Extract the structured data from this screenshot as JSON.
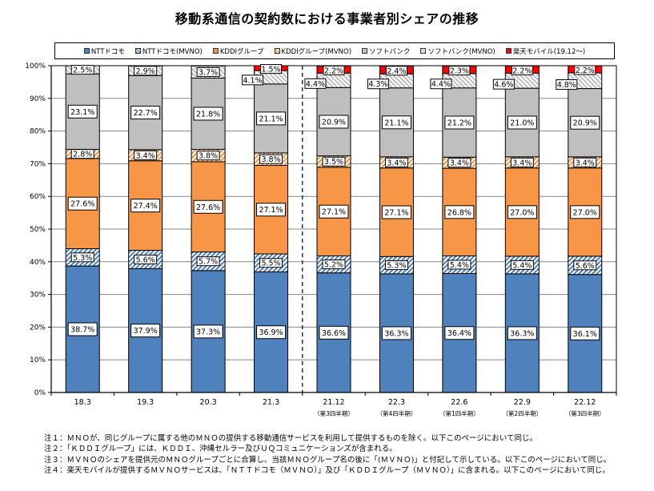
{
  "chart_data": {
    "type": "bar",
    "stacked": true,
    "title": "移動系通信の契約数における事業者別シェアの推移",
    "xlabel": "",
    "ylabel": "",
    "ylim": [
      0,
      100
    ],
    "yticks": [
      "0%",
      "10%",
      "20%",
      "30%",
      "40%",
      "50%",
      "60%",
      "70%",
      "80%",
      "90%",
      "100%"
    ],
    "grid": true,
    "legend_position": "top",
    "categories": [
      "18.3",
      "19.3",
      "20.3",
      "21.3",
      "21.12",
      "22.3",
      "22.6",
      "22.9",
      "22.12"
    ],
    "category_sublabels": [
      "",
      "",
      "",
      "",
      "（第3四半期）",
      "（第4四半期）",
      "（第1四半期）",
      "（第2四半期）",
      "（第3四半期）"
    ],
    "separator_after_index": 3,
    "series": [
      {
        "name": "NTTドコモ",
        "color": "#4f81bd",
        "pattern": "solid",
        "values": [
          38.7,
          37.9,
          37.3,
          36.9,
          36.6,
          36.3,
          36.4,
          36.3,
          36.1
        ]
      },
      {
        "name": "NTTドコモ(MVNO)",
        "color": "#4f81bd",
        "pattern": "hatch",
        "values": [
          5.3,
          5.6,
          5.7,
          5.5,
          5.2,
          5.3,
          5.4,
          5.4,
          5.6
        ]
      },
      {
        "name": "KDDIグループ",
        "color": "#f79646",
        "pattern": "solid",
        "values": [
          27.6,
          27.4,
          27.6,
          27.1,
          27.1,
          27.1,
          26.8,
          27.0,
          27.0
        ]
      },
      {
        "name": "KDDIグループ(MVNO)",
        "color": "#f79646",
        "pattern": "hatch",
        "values": [
          2.8,
          3.4,
          3.8,
          3.8,
          3.5,
          3.4,
          3.4,
          3.4,
          3.4
        ]
      },
      {
        "name": "ソフトバンク",
        "color": "#bfbfbf",
        "pattern": "solid",
        "values": [
          23.1,
          22.7,
          21.8,
          21.1,
          20.9,
          21.1,
          21.2,
          21.0,
          20.9
        ]
      },
      {
        "name": "ソフトバンク(MVNO)",
        "color": "#bfbfbf",
        "pattern": "hatch",
        "values": [
          2.5,
          2.9,
          3.7,
          4.1,
          4.4,
          4.3,
          4.4,
          4.6,
          4.8
        ]
      },
      {
        "name": "楽天モバイル(19.12～)",
        "color": "#ff0000",
        "pattern": "solid",
        "values": [
          null,
          null,
          null,
          1.5,
          2.2,
          2.4,
          2.3,
          2.2,
          2.2
        ]
      }
    ]
  },
  "notes": [
    "注１：ＭＮＯが、同じグループに属する他のＭＮＯの提供する移動通信サービスを利用して提供するものを除く。以下このページにおいて同じ。",
    "注２：「ＫＤＤＩグループ」には、ＫＤＤＩ、沖縄セルラー及びＵＱコミュニケーションズが含まれる。",
    "注３：ＭＶＮＯのシェアを提供元のＭＮＯグループごとに合算し、当該ＭＮＯグループ名の後に「(ＭＶＮＯ)」と付記して示している。以下このページにおいて同じ。",
    "注４：楽天モバイルが提供するＭＶＮＯサービスは、「ＮＴＴドコモ（ＭＶＮＯ）」及び「ＫＤＤＩグループ（ＭＶＮＯ）」に含まれる。以下このページにおいて同じ。"
  ]
}
